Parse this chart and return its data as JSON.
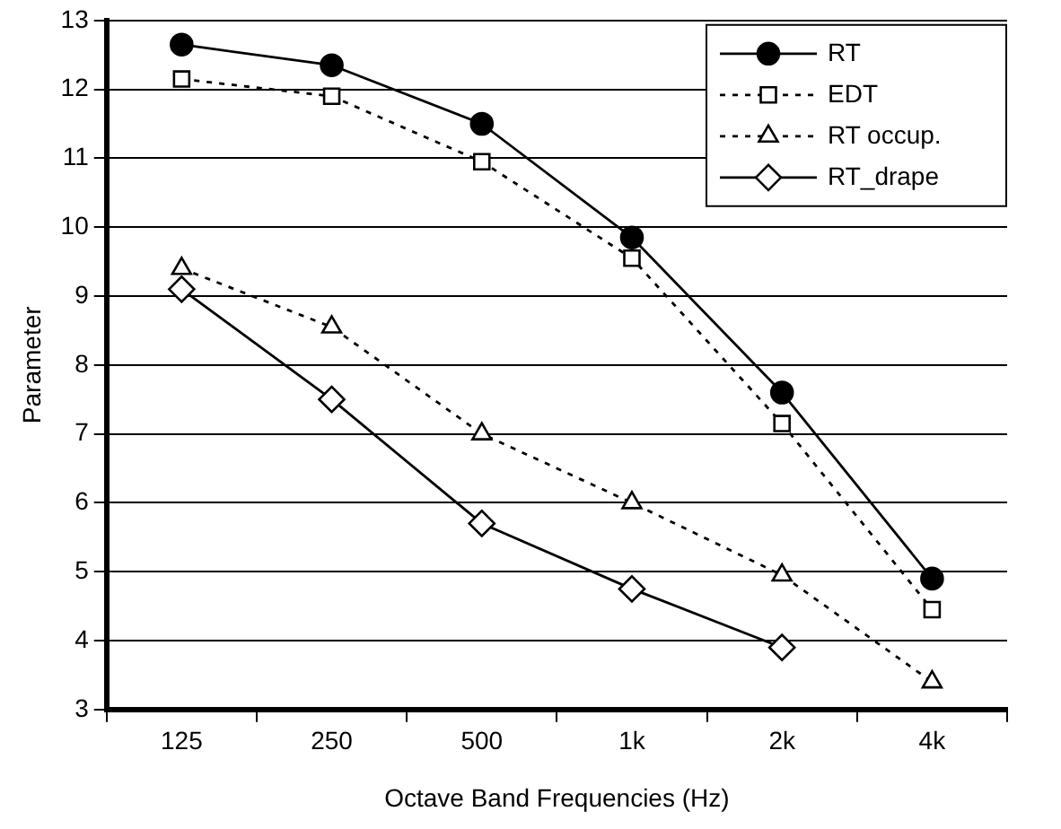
{
  "chart_data": {
    "type": "line",
    "xlabel": "Octave Band Frequencies (Hz)",
    "ylabel": "Parameter",
    "categories": [
      "125",
      "250",
      "500",
      "1k",
      "2k",
      "4k"
    ],
    "series": [
      {
        "name": "RT",
        "color": "#000000",
        "values": [
          12.65,
          12.35,
          11.5,
          9.85,
          7.6,
          4.9
        ],
        "marker": "circle",
        "line_style": "solid"
      },
      {
        "name": "EDT",
        "color": "#000000",
        "values": [
          12.15,
          11.9,
          10.95,
          9.55,
          7.15,
          4.45
        ],
        "marker": "square",
        "line_style": "dotted"
      },
      {
        "name": "RT occup.",
        "color": "#000000",
        "values": [
          9.4,
          8.55,
          7.0,
          6.0,
          4.95,
          3.4
        ],
        "marker": "triangle",
        "line_style": "dotted"
      },
      {
        "name": "RT_drape",
        "color": "#000000",
        "values": [
          9.1,
          7.5,
          5.7,
          4.75,
          3.9,
          null
        ],
        "marker": "diamond",
        "line_style": "solid"
      }
    ],
    "ylim": [
      3,
      13
    ],
    "yticks": [
      3,
      4,
      5,
      6,
      7,
      8,
      9,
      10,
      11,
      12,
      13
    ],
    "grid": "y",
    "legend": "top right"
  }
}
